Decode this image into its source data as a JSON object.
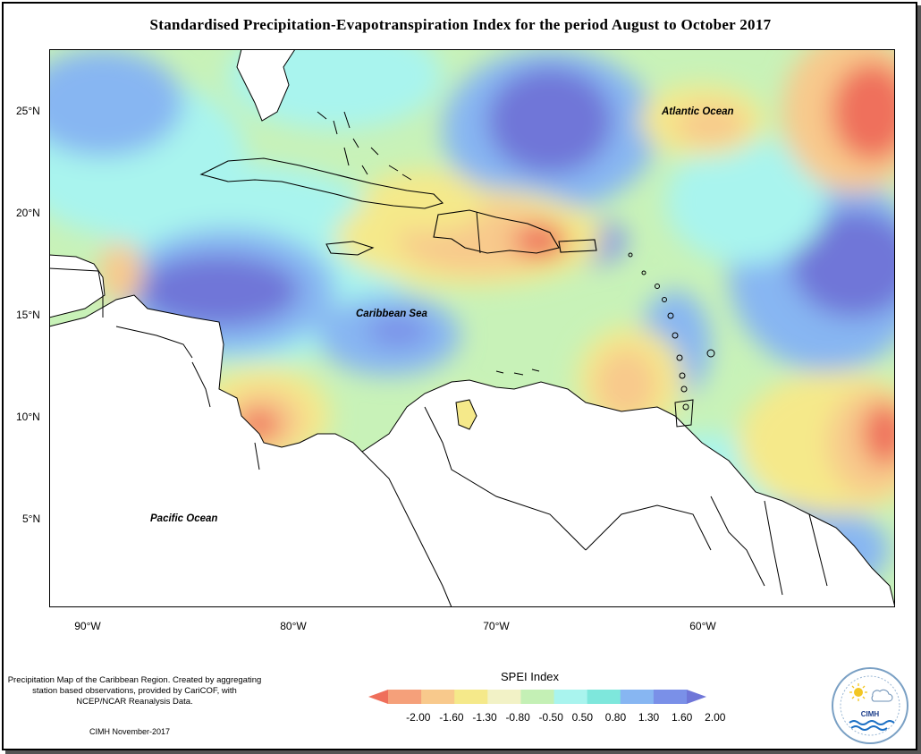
{
  "title": "Standardised Precipitation-Evapotranspiration Index for the period August to October 2017",
  "map": {
    "labels": {
      "atlantic": "Atlantic Ocean",
      "caribbean": "Caribbean Sea",
      "pacific": "Pacific Ocean"
    },
    "lat_ticks": [
      "25°N",
      "20°N",
      "15°N",
      "10°N",
      "5°N"
    ],
    "lon_ticks": [
      "90°W",
      "80°W",
      "70°W",
      "60°W"
    ]
  },
  "legend": {
    "title": "SPEI Index",
    "ticks": [
      "-2.00",
      "-1.60",
      "-1.30",
      "-0.80",
      "-0.50",
      "0.50",
      "0.80",
      "1.30",
      "1.60",
      "2.00"
    ],
    "colors": [
      "#ef6f5b",
      "#f5a07a",
      "#f8c98c",
      "#f5e98a",
      "#f2f2c6",
      "#c4f0b5",
      "#a9f4ee",
      "#7ee7dc",
      "#87b6f2",
      "#7a90e8",
      "#6f76d8"
    ]
  },
  "notes": {
    "description": "Precipitation Map of the Caribbean Region. Created by aggregating station based observations, provided by CariCOF, with NCEP/NCAR Reanalysis Data.",
    "stamp": "CIMH November-2017"
  },
  "logo": {
    "text": "CIMH"
  }
}
